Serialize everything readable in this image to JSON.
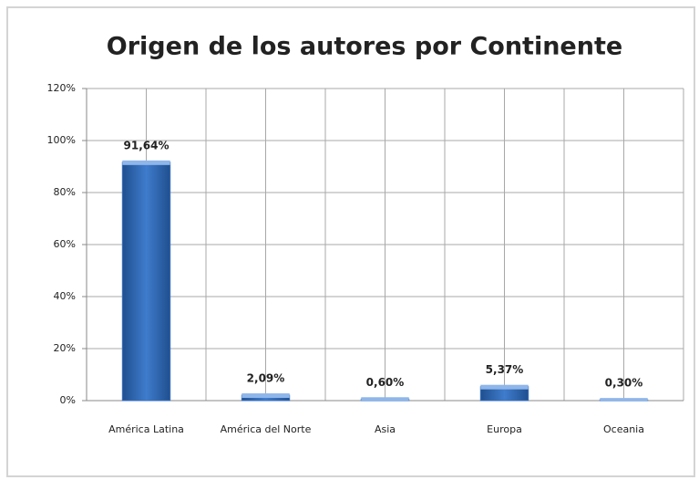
{
  "chart_data": {
    "type": "bar",
    "title": "Origen de los autores por Continente",
    "categories": [
      "América Latina",
      "América del Norte",
      "Asia",
      "Europa",
      "Oceania"
    ],
    "values": [
      91.64,
      2.09,
      0.6,
      5.37,
      0.3
    ],
    "value_labels": [
      "91,64%",
      "2,09%",
      "0,60%",
      "5,37%",
      "0,30%"
    ],
    "color": "#3a72c0",
    "ylim": [
      0,
      120
    ],
    "yticks": [
      {
        "value": 0,
        "label": "0%"
      },
      {
        "value": 20,
        "label": "20%"
      },
      {
        "value": 40,
        "label": "40%"
      },
      {
        "value": 60,
        "label": "60%"
      },
      {
        "value": 80,
        "label": "80%"
      },
      {
        "value": 100,
        "label": "100%"
      },
      {
        "value": 120,
        "label": "120%"
      }
    ],
    "grid": true
  }
}
